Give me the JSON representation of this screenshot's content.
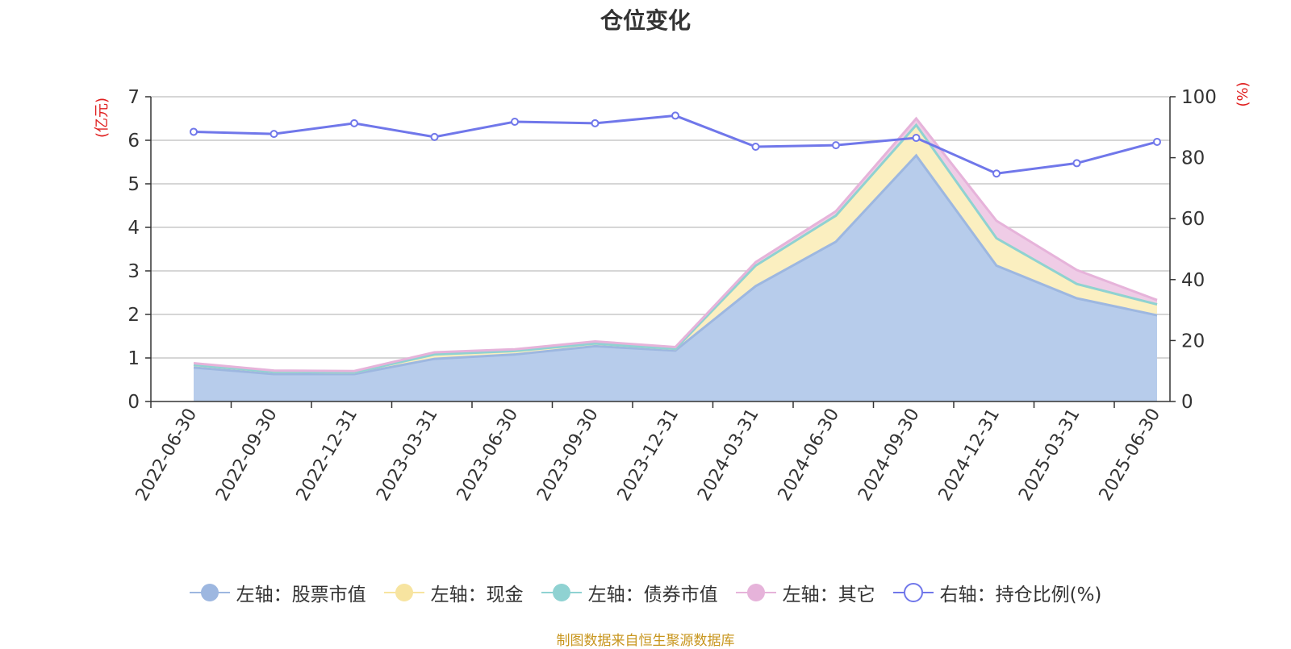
{
  "chart_data": {
    "type": "area",
    "title": "仓位变化",
    "ylabel_left": "亿元",
    "ylabel_right": "%",
    "ylim_left": [
      0,
      7
    ],
    "ylim_right": [
      0,
      100
    ],
    "yticks_left": [
      0,
      1,
      2,
      3,
      4,
      5,
      6,
      7
    ],
    "yticks_right": [
      0,
      20,
      40,
      60,
      80,
      100
    ],
    "categories": [
      "2022-06-30",
      "2022-09-30",
      "2022-12-31",
      "2023-03-31",
      "2023-06-30",
      "2023-09-30",
      "2023-12-31",
      "2024-03-31",
      "2024-06-30",
      "2024-09-30",
      "2024-12-31",
      "2025-03-31",
      "2025-06-30"
    ],
    "grid": true,
    "legend_position": "bottom",
    "stacked": true,
    "series": [
      {
        "name": "左轴：股票市值",
        "axis": "left",
        "color": "#9db7e0",
        "fill": "#b7cceb",
        "values": [
          0.78,
          0.63,
          0.63,
          0.98,
          1.08,
          1.27,
          1.17,
          2.65,
          3.67,
          5.65,
          3.12,
          2.37,
          1.98
        ]
      },
      {
        "name": "左轴：现金",
        "axis": "left",
        "color": "#f7e4a0",
        "fill": "#fbefc0",
        "values": [
          0.06,
          0.05,
          0.04,
          0.1,
          0.08,
          0.06,
          0.04,
          0.47,
          0.6,
          0.7,
          0.63,
          0.33,
          0.25
        ]
      },
      {
        "name": "左轴：债券市值",
        "axis": "left",
        "color": "#8fd2d2",
        "fill": "#bfe6e6",
        "values": [
          0,
          0,
          0,
          0,
          0,
          0,
          0,
          0,
          0,
          0,
          0,
          0,
          0
        ]
      },
      {
        "name": "左轴：其它",
        "axis": "left",
        "color": "#e6b3da",
        "fill": "#efcce6",
        "values": [
          0.04,
          0.03,
          0.03,
          0.05,
          0.04,
          0.05,
          0.04,
          0.08,
          0.1,
          0.15,
          0.4,
          0.32,
          0.1
        ]
      },
      {
        "name": "右轴：持仓比例(%)",
        "axis": "right",
        "color": "#7077ea",
        "values": [
          88.5,
          87.8,
          91.3,
          86.8,
          91.8,
          91.3,
          93.8,
          83.6,
          84.1,
          86.5,
          74.8,
          78.2,
          85.2
        ]
      }
    ]
  },
  "source_note": "制图数据来自恒生聚源数据库"
}
